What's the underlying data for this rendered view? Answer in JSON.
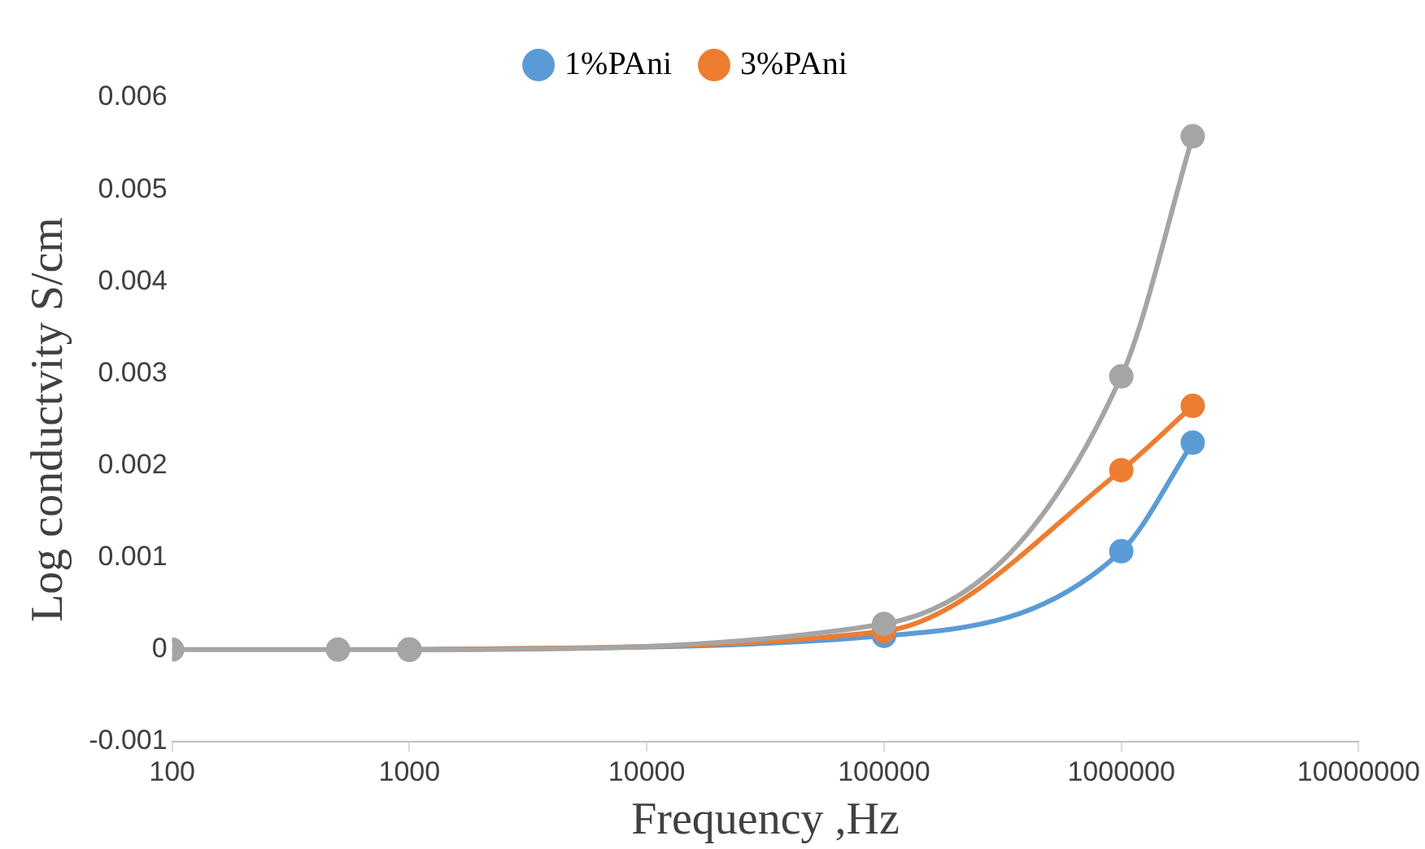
{
  "chart_data": {
    "type": "line",
    "xlabel": "Frequency ,Hz",
    "ylabel": "Log conductvity S/cm",
    "x": [
      100,
      500,
      1000,
      100000,
      1000000,
      2000000
    ],
    "series": [
      {
        "name": "1%PAni",
        "color": "#5b9bd5",
        "values": [
          null,
          null,
          0,
          0.00015,
          0.00107,
          0.00225
        ]
      },
      {
        "name": "3%PAni",
        "color": "#ed7d31",
        "values": [
          null,
          null,
          0,
          0.0002,
          0.00195,
          0.00265
        ]
      },
      {
        "color": "#a5a5a5",
        "values": [
          0,
          0,
          0,
          0.00028,
          0.00297,
          0.00558
        ]
      }
    ],
    "log": "x",
    "xlim": [
      100,
      10000000
    ],
    "xticks": [
      100,
      1000,
      10000,
      100000,
      1000000,
      10000000
    ],
    "ylim": [
      -0.001,
      0.006
    ],
    "yticks": [
      -0.001,
      0,
      0.001,
      0.002,
      0.003,
      0.004,
      0.005,
      0.006
    ],
    "grid": false,
    "legend": "top",
    "marker": "circle",
    "line_style": "solid"
  }
}
